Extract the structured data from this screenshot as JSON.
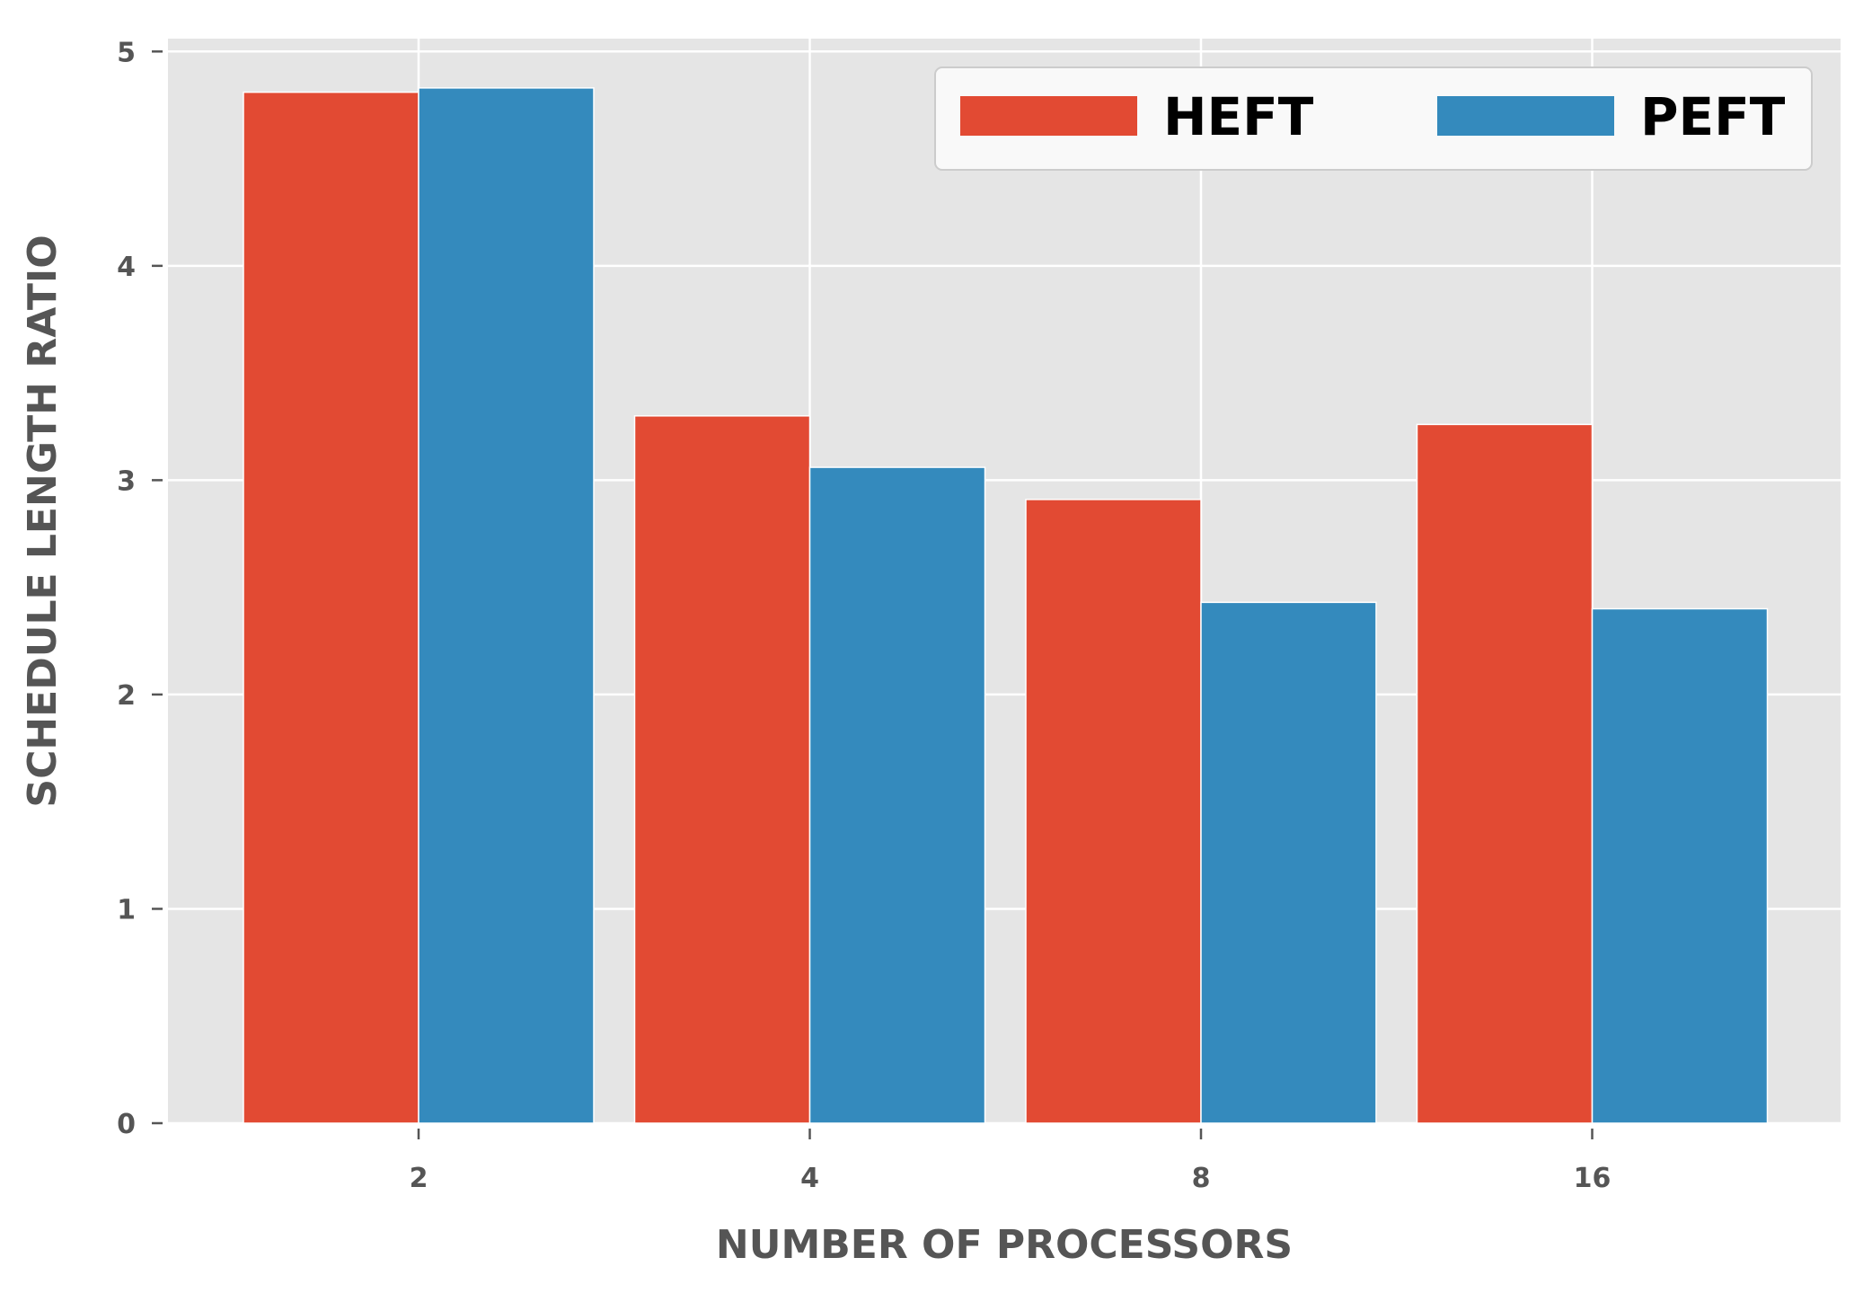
{
  "chart_data": {
    "type": "bar",
    "categories": [
      "2",
      "4",
      "8",
      "16"
    ],
    "series": [
      {
        "name": "HEFT",
        "color": "#E24A33",
        "values": [
          4.81,
          3.3,
          2.91,
          3.26
        ]
      },
      {
        "name": "PEFT",
        "color": "#348ABD",
        "values": [
          4.83,
          3.06,
          2.43,
          2.4
        ]
      }
    ],
    "xlabel": "NUMBER OF PROCESSORS",
    "ylabel": "SCHEDULE LENGTH RATIO",
    "ylim": [
      0,
      5.06
    ],
    "yticks": [
      "0",
      "1",
      "2",
      "3",
      "4",
      "5"
    ],
    "grid": true,
    "legend_position": "top-right",
    "background_color": "#E5E5E5"
  }
}
